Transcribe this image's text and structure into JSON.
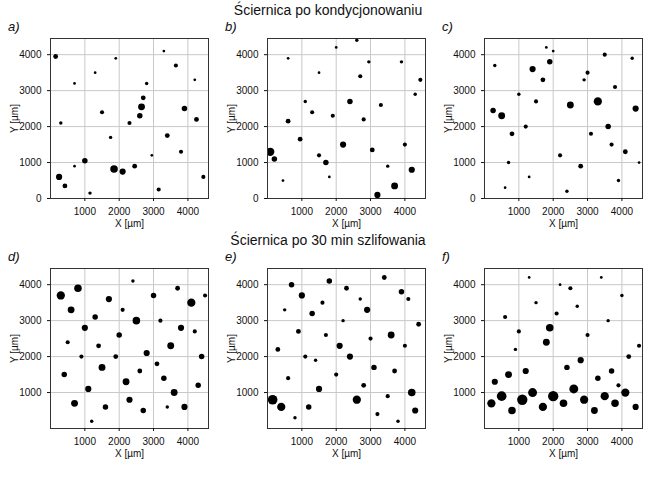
{
  "headings": [
    "Ściernica po kondycjonowaniu",
    "Ściernica po 30 min szlifowania"
  ],
  "chart_data": [
    {
      "type": "scatter",
      "title": "a)",
      "x_label": "X [µm]",
      "y_label": "Y [µm]",
      "xlim": [
        0,
        4600
      ],
      "ylim": [
        0,
        4450
      ],
      "xticks": [
        1000,
        2000,
        3000,
        4000
      ],
      "yticks": [
        0,
        1000,
        2000,
        3000,
        4000
      ],
      "grid": true,
      "color": "#000000",
      "marker": "circle",
      "x": [
        250,
        420,
        700,
        1000,
        1150,
        1500,
        1750,
        1850,
        2100,
        2450,
        2600,
        2650,
        2700,
        2950,
        3150,
        3400,
        3650,
        3900,
        4250,
        4450,
        300,
        700,
        1300,
        1900,
        2300,
        2800,
        3300,
        3800,
        4200,
        150
      ],
      "y": [
        600,
        350,
        900,
        1050,
        150,
        2400,
        1700,
        820,
        750,
        900,
        2300,
        2550,
        2800,
        1200,
        250,
        1750,
        3700,
        2500,
        2200,
        600,
        2100,
        3200,
        3500,
        3900,
        2100,
        3200,
        4100,
        1300,
        3300,
        3950
      ],
      "radii": [
        90,
        70,
        40,
        80,
        50,
        60,
        50,
        110,
        90,
        70,
        80,
        100,
        70,
        40,
        60,
        70,
        60,
        80,
        70,
        60,
        50,
        40,
        40,
        40,
        60,
        50,
        40,
        60,
        40,
        70
      ]
    },
    {
      "type": "scatter",
      "title": "b)",
      "x_label": "X [µm]",
      "y_label": "Y [µm]",
      "xlim": [
        0,
        4600
      ],
      "ylim": [
        0,
        4450
      ],
      "xticks": [
        1000,
        2000,
        3000,
        4000
      ],
      "yticks": [
        0,
        1000,
        2000,
        3000,
        4000
      ],
      "grid": true,
      "color": "#000000",
      "marker": "circle",
      "x": [
        80,
        200,
        600,
        950,
        1300,
        1500,
        1700,
        1900,
        2200,
        2400,
        2700,
        2950,
        3050,
        3300,
        3500,
        3700,
        4000,
        4300,
        4450,
        600,
        1100,
        1500,
        2000,
        2600,
        3200,
        3900,
        2800,
        1800,
        450,
        4200
      ],
      "y": [
        1300,
        1100,
        2150,
        1650,
        2400,
        1200,
        1000,
        2300,
        1500,
        2700,
        3400,
        3800,
        1350,
        2600,
        900,
        350,
        1500,
        2900,
        3300,
        3900,
        2700,
        3500,
        4200,
        4400,
        100,
        3800,
        2200,
        600,
        500,
        800
      ],
      "radii": [
        120,
        80,
        70,
        70,
        60,
        60,
        80,
        60,
        90,
        80,
        60,
        50,
        70,
        60,
        50,
        100,
        60,
        50,
        60,
        40,
        50,
        40,
        40,
        50,
        90,
        50,
        60,
        40,
        40,
        90
      ]
    },
    {
      "type": "scatter",
      "title": "c)",
      "x_label": "X [µm]",
      "y_label": "Y [µm]",
      "xlim": [
        0,
        4600
      ],
      "ylim": [
        0,
        4450
      ],
      "xticks": [
        1000,
        2000,
        3000,
        4000
      ],
      "yticks": [
        0,
        1000,
        2000,
        3000,
        4000
      ],
      "grid": true,
      "color": "#000000",
      "marker": "circle",
      "x": [
        250,
        500,
        800,
        1200,
        1400,
        1700,
        1900,
        2200,
        2500,
        2800,
        3000,
        3300,
        3600,
        3800,
        4100,
        4400,
        300,
        700,
        1300,
        1800,
        2400,
        3100,
        3500,
        3900,
        4300,
        1000,
        2000,
        2900,
        3700,
        4500,
        600,
        1500
      ],
      "y": [
        2450,
        2300,
        1800,
        2000,
        3600,
        3300,
        3800,
        1200,
        2600,
        900,
        3500,
        2700,
        2000,
        3100,
        1300,
        2500,
        3700,
        1000,
        600,
        4200,
        200,
        1800,
        4000,
        500,
        3900,
        2900,
        4100,
        3300,
        1500,
        1000,
        300,
        2700
      ],
      "radii": [
        80,
        100,
        70,
        60,
        90,
        70,
        80,
        60,
        100,
        70,
        60,
        120,
        80,
        60,
        70,
        90,
        50,
        50,
        40,
        40,
        50,
        60,
        60,
        50,
        50,
        50,
        40,
        50,
        60,
        40,
        40,
        60
      ]
    },
    {
      "type": "scatter",
      "title": "d)",
      "x_label": "X [µm]",
      "y_label": "Y [µm]",
      "xlim": [
        0,
        4600
      ],
      "ylim": [
        0,
        4450
      ],
      "xticks": [
        1000,
        2000,
        3000,
        4000
      ],
      "yticks": [
        1000,
        2000,
        3000,
        4000
      ],
      "grid": true,
      "color": "#000000",
      "marker": "circle",
      "x": [
        300,
        600,
        800,
        1000,
        1300,
        1500,
        1700,
        2000,
        2200,
        2500,
        2800,
        3000,
        3300,
        3500,
        3800,
        4100,
        4400,
        400,
        700,
        1100,
        1600,
        1900,
        2300,
        2700,
        3100,
        3600,
        3900,
        4300,
        500,
        900,
        1400,
        2100,
        2600,
        3200,
        3700,
        4200,
        1200,
        2400,
        3400,
        4500
      ],
      "y": [
        3700,
        3300,
        3900,
        2800,
        3100,
        1700,
        3600,
        2600,
        1300,
        3000,
        2100,
        3700,
        1400,
        2300,
        2800,
        3500,
        2000,
        1500,
        700,
        1100,
        600,
        2000,
        800,
        500,
        1800,
        1000,
        600,
        1200,
        2400,
        2000,
        2300,
        3300,
        1600,
        3000,
        3900,
        2700,
        200,
        4100,
        600,
        3700
      ],
      "radii": [
        120,
        100,
        110,
        90,
        80,
        100,
        90,
        80,
        100,
        110,
        90,
        80,
        80,
        100,
        90,
        120,
        80,
        80,
        100,
        90,
        80,
        70,
        90,
        80,
        70,
        100,
        90,
        80,
        60,
        60,
        70,
        60,
        70,
        60,
        70,
        60,
        50,
        50,
        50,
        60
      ]
    },
    {
      "type": "scatter",
      "title": "e)",
      "x_label": "X [µm]",
      "y_label": "Y [µm]",
      "xlim": [
        0,
        4600
      ],
      "ylim": [
        0,
        4450
      ],
      "xticks": [
        1000,
        2000,
        3000,
        4000
      ],
      "yticks": [
        1000,
        2000,
        3000,
        4000
      ],
      "grid": true,
      "color": "#000000",
      "marker": "circle",
      "x": [
        150,
        400,
        700,
        1000,
        1300,
        1500,
        1800,
        2100,
        2300,
        2600,
        2900,
        3100,
        3400,
        3600,
        3900,
        4200,
        4400,
        300,
        600,
        900,
        1200,
        1600,
        2000,
        2400,
        2800,
        3200,
        3700,
        4000,
        4300,
        500,
        1100,
        1700,
        2200,
        3000,
        3500,
        4100,
        800,
        1400,
        2700,
        3800
      ],
      "y": [
        800,
        600,
        4000,
        3700,
        3200,
        1100,
        4100,
        2300,
        3900,
        800,
        3300,
        1700,
        4200,
        2600,
        3800,
        1000,
        2900,
        2200,
        1400,
        2700,
        600,
        3500,
        1500,
        2000,
        1200,
        400,
        1600,
        2300,
        500,
        3300,
        2000,
        2600,
        3000,
        2500,
        900,
        3600,
        300,
        1900,
        3600,
        200
      ],
      "radii": [
        140,
        120,
        80,
        90,
        80,
        90,
        80,
        90,
        70,
        120,
        90,
        80,
        70,
        100,
        80,
        110,
        70,
        70,
        60,
        70,
        80,
        60,
        60,
        90,
        70,
        60,
        70,
        60,
        90,
        50,
        60,
        60,
        50,
        60,
        60,
        60,
        50,
        50,
        50,
        50
      ]
    },
    {
      "type": "scatter",
      "title": "f)",
      "x_label": "X [µm]",
      "y_label": "Y [µm]",
      "xlim": [
        0,
        4600
      ],
      "ylim": [
        0,
        4450
      ],
      "xticks": [
        1000,
        2000,
        3000,
        4000
      ],
      "yticks": [
        1000,
        2000,
        3000,
        4000
      ],
      "grid": true,
      "color": "#000000",
      "marker": "circle",
      "x": [
        200,
        500,
        800,
        1100,
        1400,
        1700,
        2000,
        2300,
        2600,
        2900,
        3200,
        3500,
        3800,
        4100,
        4400,
        300,
        700,
        1200,
        1800,
        1900,
        2400,
        2800,
        3300,
        3700,
        4200,
        600,
        1000,
        1500,
        2100,
        2500,
        3000,
        3600,
        4000,
        4500,
        1300,
        2200,
        3400,
        900,
        2700,
        3900
      ],
      "y": [
        700,
        900,
        500,
        800,
        1000,
        600,
        900,
        700,
        1100,
        800,
        500,
        900,
        700,
        1000,
        600,
        1300,
        1500,
        1600,
        2400,
        2800,
        1700,
        1900,
        1400,
        1600,
        2000,
        3100,
        2700,
        3500,
        3200,
        3900,
        2600,
        3000,
        3700,
        2300,
        4200,
        4000,
        4200,
        2200,
        3400,
        1200
      ],
      "radii": [
        120,
        140,
        110,
        150,
        130,
        120,
        150,
        110,
        130,
        120,
        100,
        120,
        110,
        120,
        90,
        90,
        100,
        90,
        100,
        110,
        80,
        90,
        80,
        80,
        70,
        60,
        60,
        50,
        60,
        60,
        60,
        50,
        50,
        60,
        40,
        40,
        40,
        50,
        50,
        60
      ]
    }
  ]
}
